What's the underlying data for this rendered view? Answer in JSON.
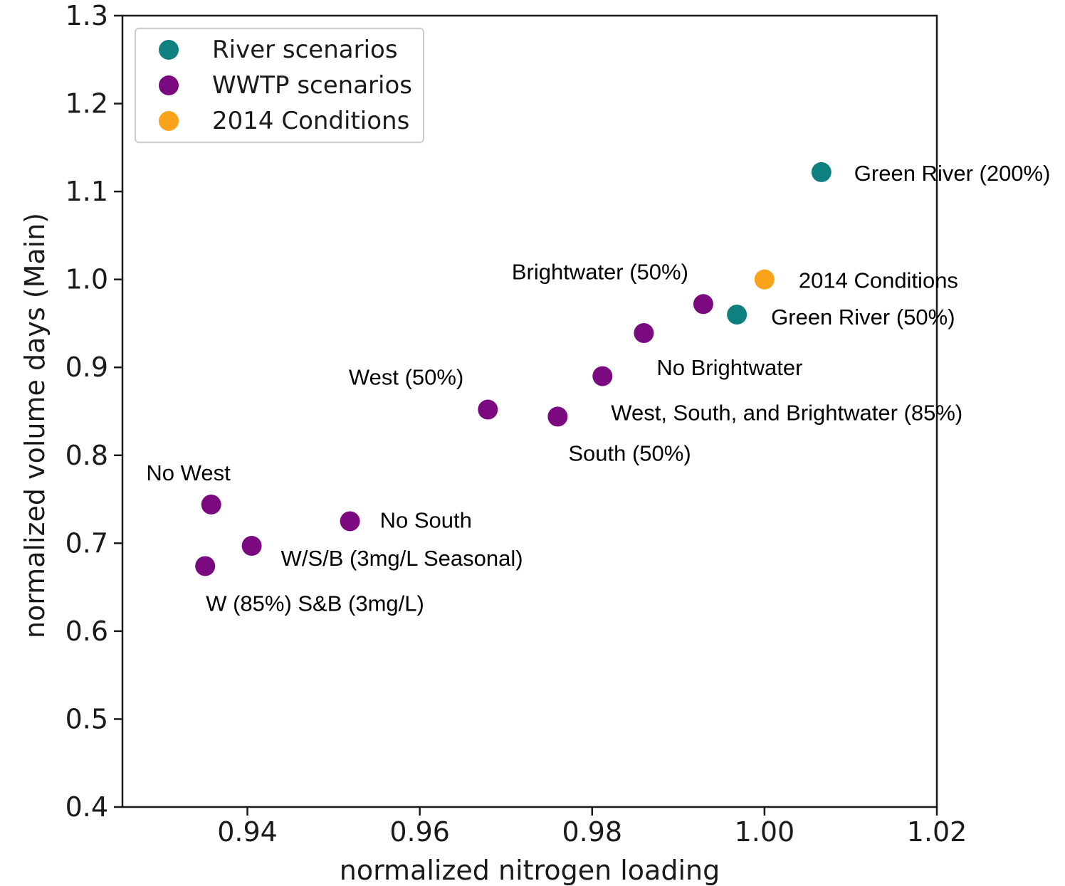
{
  "chart_data": {
    "type": "scatter",
    "xlabel": "normalized nitrogen loading",
    "ylabel": "normalized volume days (Main)",
    "xlim": [
      0.9255,
      1.02
    ],
    "ylim": [
      0.4,
      1.3
    ],
    "xticks": [
      "0.94",
      "0.96",
      "0.98",
      "1.00",
      "1.02"
    ],
    "yticks": [
      "0.4",
      "0.5",
      "0.6",
      "0.7",
      "0.8",
      "0.9",
      "1.0",
      "1.1",
      "1.2",
      "1.3"
    ],
    "grid": false,
    "legend_position": "top-left",
    "series": [
      {
        "name": "River scenarios",
        "color": "#0f8080",
        "points": [
          {
            "x": 1.0066,
            "y": 1.122,
            "label": "Green River (200%)"
          },
          {
            "x": 0.9968,
            "y": 0.96,
            "label": "Green River (50%)"
          }
        ]
      },
      {
        "name": "WWTP scenarios",
        "color": "#7b0a80",
        "points": [
          {
            "x": 0.9929,
            "y": 0.972,
            "label": "Brightwater (50%)"
          },
          {
            "x": 0.986,
            "y": 0.939,
            "label": "No Brightwater"
          },
          {
            "x": 0.9812,
            "y": 0.89,
            "label": "West, South, and Brightwater (85%)"
          },
          {
            "x": 0.9679,
            "y": 0.852,
            "label": "West (50%)"
          },
          {
            "x": 0.976,
            "y": 0.844,
            "label": "South (50%)"
          },
          {
            "x": 0.9358,
            "y": 0.744,
            "label": "No West"
          },
          {
            "x": 0.9519,
            "y": 0.725,
            "label": "No South"
          },
          {
            "x": 0.9405,
            "y": 0.697,
            "label": "W/S/B (3mg/L Seasonal)"
          },
          {
            "x": 0.9351,
            "y": 0.674,
            "label": "W (85%) S&B (3mg/L)"
          }
        ]
      },
      {
        "name": "2014 Conditions",
        "color": "#f9a31b",
        "points": [
          {
            "x": 1.0,
            "y": 1.0,
            "label": "2014 Conditions"
          }
        ]
      }
    ]
  }
}
